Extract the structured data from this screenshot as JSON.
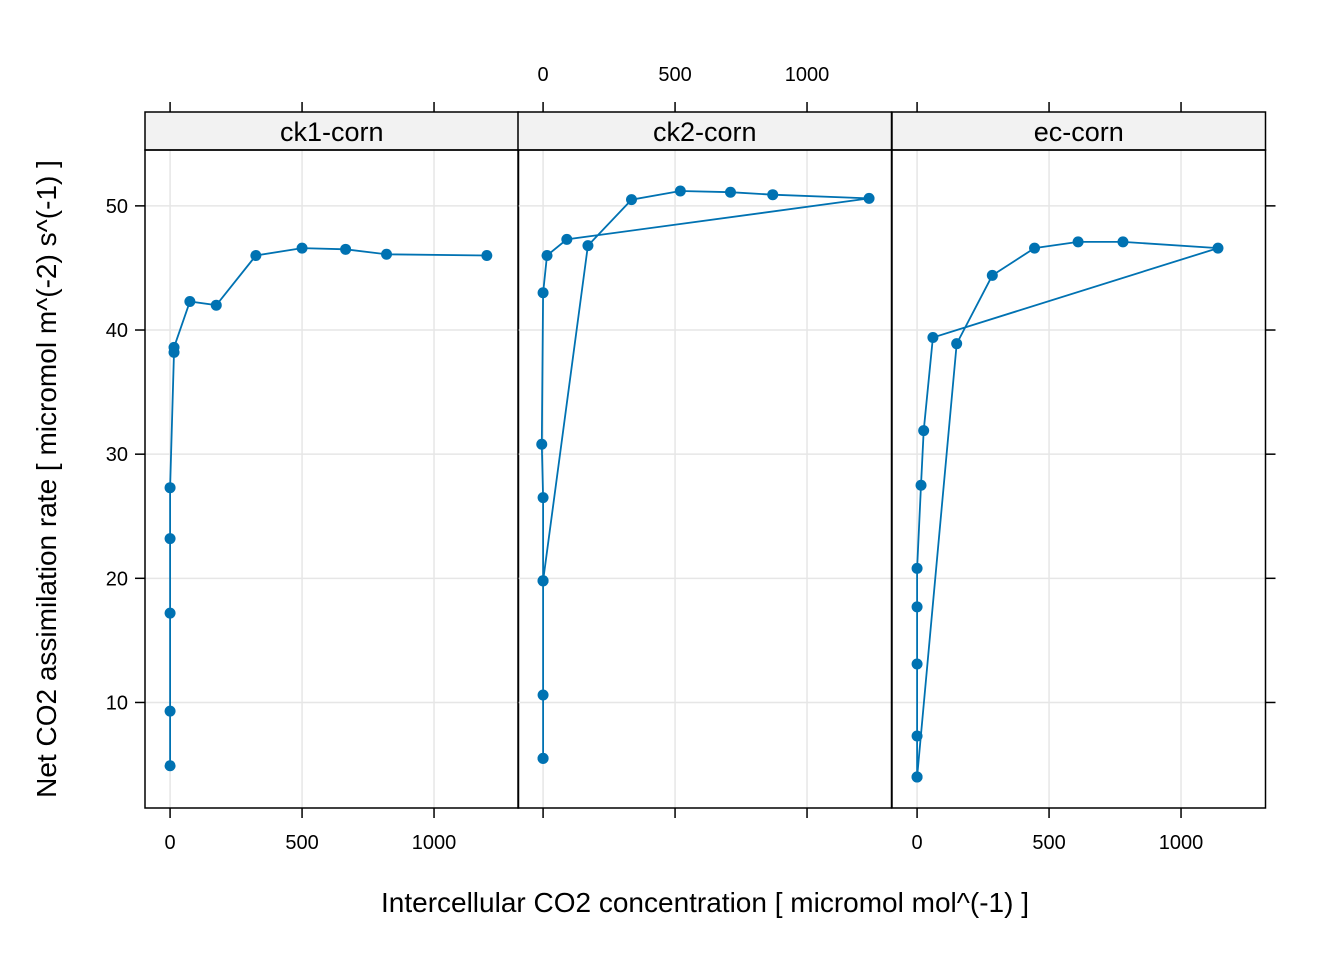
{
  "chart_data": {
    "type": "line",
    "markers": true,
    "xlabel": "Intercellular CO2 concentration [ micromol mol^(-1) ]",
    "ylabel": "Net CO2 assimilation rate [ micromol m^(-2) s^(-1) ]",
    "xlim": [
      -95,
      1320
    ],
    "ylim": [
      1.5,
      54.5
    ],
    "x_ticks": [
      0,
      500,
      1000
    ],
    "y_ticks": [
      10,
      20,
      30,
      40,
      50
    ],
    "grid": true,
    "line_color": "#0072b2",
    "panels": [
      {
        "name": "ck1-corn",
        "x": [
          0,
          0,
          0,
          0,
          0,
          15,
          15,
          75,
          175,
          325,
          500,
          665,
          820,
          1200
        ],
        "y": [
          4.9,
          9.3,
          17.2,
          23.2,
          27.3,
          38.2,
          38.6,
          42.3,
          42.0,
          46.0,
          46.6,
          46.5,
          46.1,
          46.0
        ]
      },
      {
        "name": "ck2-corn",
        "x": [
          0,
          0,
          0,
          0,
          -5,
          0,
          15,
          90,
          1235,
          870,
          710,
          520,
          335,
          170,
          0,
          0
        ],
        "y": [
          5.5,
          10.6,
          19.8,
          26.5,
          30.8,
          43.0,
          46.0,
          47.3,
          50.6,
          50.9,
          51.1,
          51.2,
          50.5,
          46.8,
          19.8,
          5.5
        ]
      },
      {
        "name": "ec-corn",
        "x": [
          0,
          0,
          0,
          0,
          0,
          15,
          25,
          60,
          1140,
          780,
          610,
          445,
          285,
          150,
          0
        ],
        "y": [
          4.0,
          7.3,
          13.1,
          17.7,
          20.8,
          27.5,
          31.9,
          39.4,
          46.6,
          47.1,
          47.1,
          46.6,
          44.4,
          38.9,
          4.0
        ]
      }
    ],
    "tick_placement": {
      "bottom": [
        "ck1-corn",
        "ec-corn"
      ],
      "top": [
        "ck2-corn"
      ],
      "left": [
        "ck1-corn"
      ],
      "right": [
        "ec-corn"
      ]
    }
  }
}
